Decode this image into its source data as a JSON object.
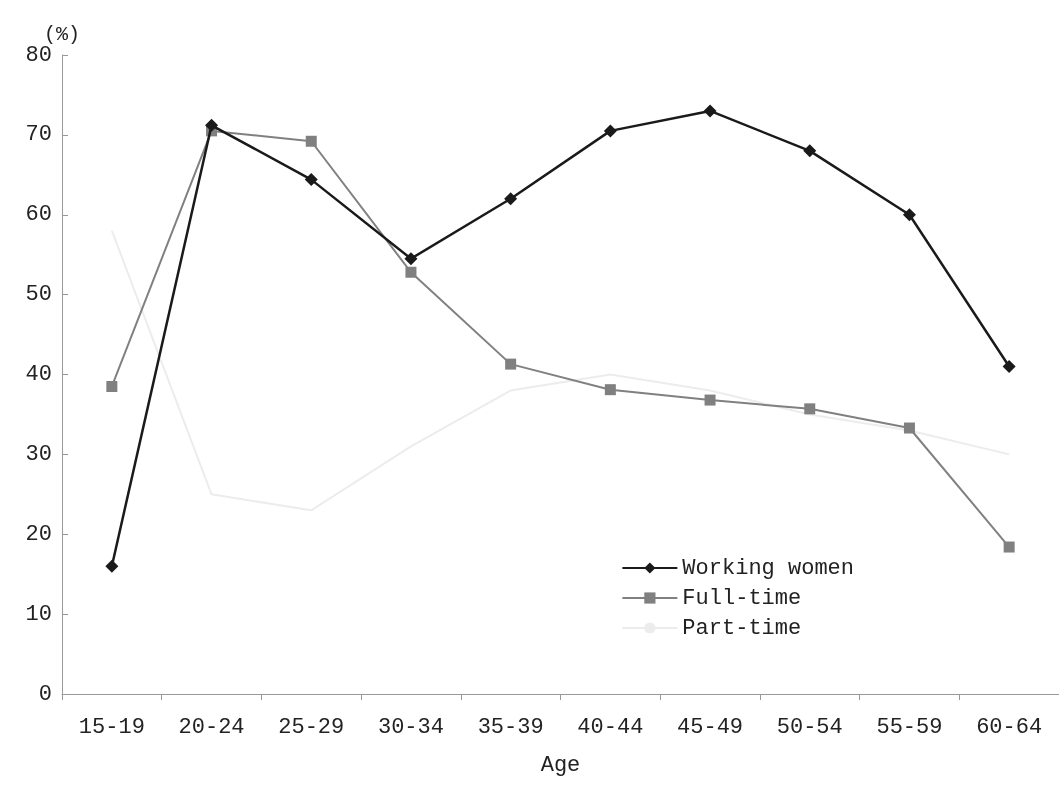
{
  "chart_data": {
    "type": "line",
    "xlabel": "Age",
    "ylabel": "(%)",
    "categories": [
      "15-19",
      "20-24",
      "25-29",
      "30-34",
      "35-39",
      "40-44",
      "45-49",
      "50-54",
      "55-59",
      "60-64"
    ],
    "series": [
      {
        "name": "Working women",
        "color": "#1a1a1a",
        "marker": "diamond",
        "values": [
          16,
          71.2,
          64.4,
          54.5,
          62,
          70.5,
          73,
          68,
          60,
          41
        ]
      },
      {
        "name": "Full-time",
        "color": "#808080",
        "marker": "square",
        "values": [
          38.5,
          70.5,
          69.2,
          52.8,
          41.3,
          38.1,
          36.8,
          35.7,
          33.3,
          18.4
        ]
      },
      {
        "name": "Part-time",
        "color": "#ececec",
        "marker": "none",
        "values": [
          58,
          25,
          23,
          31,
          38,
          40,
          38,
          35,
          33,
          30
        ]
      }
    ],
    "ylim": [
      0,
      80
    ],
    "yticks": [
      0,
      10,
      20,
      30,
      40,
      50,
      60,
      70,
      80
    ],
    "grid": false,
    "legend": "bottom right"
  }
}
